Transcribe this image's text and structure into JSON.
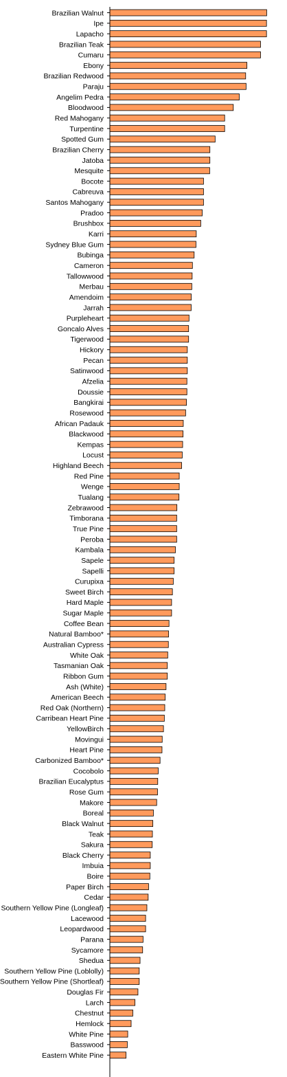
{
  "chart_data": {
    "type": "bar",
    "orientation": "horizontal",
    "title": "",
    "xlabel": "",
    "ylabel": "",
    "xlim": [
      0,
      4000
    ],
    "x_ticks": [
      "0",
      "500",
      "1000",
      "1500",
      "2000",
      "2500",
      "3000",
      "3500",
      "4000"
    ],
    "grid": false,
    "legend": "none",
    "bar_color": "#FF9A5C",
    "bar_edge_color": "#000000",
    "categories": [
      "Brazilian Walnut",
      "Ipe",
      "Lapacho",
      "Brazilian Teak",
      "Cumaru",
      "Ebony",
      "Brazilian Redwood",
      "Paraju",
      "Angelim Pedra",
      "Bloodwood",
      "Red Mahogany",
      "Turpentine",
      "Spotted Gum",
      "Brazilian Cherry",
      "Jatoba",
      "Mesquite",
      "Bocote",
      "Cabreuva",
      "Santos Mahogany",
      "Pradoo",
      "Brushbox",
      "Karri",
      "Sydney Blue Gum",
      "Bubinga",
      "Cameron",
      "Tallowwood",
      "Merbau",
      "Amendoim",
      "Jarrah",
      "Purpleheart",
      "Goncalo Alves",
      "Tigerwood",
      "Hickory",
      "Pecan",
      "Satinwood",
      "Afzelia",
      "Doussie",
      "Bangkirai",
      "Rosewood",
      "African Padauk",
      "Blackwood",
      "Kempas",
      "Locust",
      "Highland Beech",
      "Red Pine",
      "Wenge",
      "Tualang",
      "Zebrawood",
      "Timborana",
      "True Pine",
      "Peroba",
      "Kambala",
      "Sapele",
      "Sapelli",
      "Curupixa",
      "Sweet Birch",
      "Hard Maple",
      "Sugar Maple",
      "Coffee Bean",
      "Natural Bamboo*",
      "Australian Cypress",
      "White Oak",
      "Tasmanian Oak",
      "Ribbon Gum",
      "Ash (White)",
      "American Beech",
      "Red Oak (Northern)",
      "Carribean Heart Pine",
      "YellowBirch",
      "Movingui",
      "Heart Pine",
      "Carbonized Bamboo*",
      "Cocobolo",
      "Brazilian Eucalyptus",
      "Rose Gum",
      "Makore",
      "Boreal",
      "Black Walnut",
      "Teak",
      "Sakura",
      "Black Cherry",
      "Imbuia",
      "Boire",
      "Paper Birch",
      "Cedar",
      "Southern Yellow Pine (Longleaf)",
      "Lacewood",
      "Leopardwood",
      "Parana",
      "Sycamore",
      "Shedua",
      "Southern Yellow Pine (Loblolly)",
      "Southern Yellow Pine (Shortleaf)",
      "Douglas Fir",
      "Larch",
      "Chestnut",
      "Hemlock",
      "White Pine",
      "Basswood",
      "Eastern White Pine"
    ],
    "values": [
      3684,
      3680,
      3680,
      3540,
      3540,
      3220,
      3190,
      3200,
      3040,
      2900,
      2697,
      2697,
      2473,
      2350,
      2350,
      2345,
      2200,
      2200,
      2200,
      2170,
      2135,
      2030,
      2023,
      1980,
      1940,
      1933,
      1925,
      1912,
      1910,
      1860,
      1850,
      1850,
      1820,
      1820,
      1820,
      1810,
      1810,
      1800,
      1780,
      1725,
      1720,
      1710,
      1700,
      1686,
      1630,
      1630,
      1624,
      1575,
      1570,
      1570,
      1570,
      1540,
      1510,
      1510,
      1490,
      1470,
      1450,
      1450,
      1390,
      1380,
      1375,
      1360,
      1350,
      1350,
      1320,
      1300,
      1290,
      1280,
      1260,
      1230,
      1225,
      1180,
      1136,
      1125,
      1120,
      1100,
      1023,
      1010,
      1000,
      995,
      950,
      950,
      940,
      910,
      900,
      870,
      840,
      840,
      780,
      770,
      710,
      690,
      690,
      660,
      590,
      540,
      500,
      420,
      410,
      380
    ]
  }
}
